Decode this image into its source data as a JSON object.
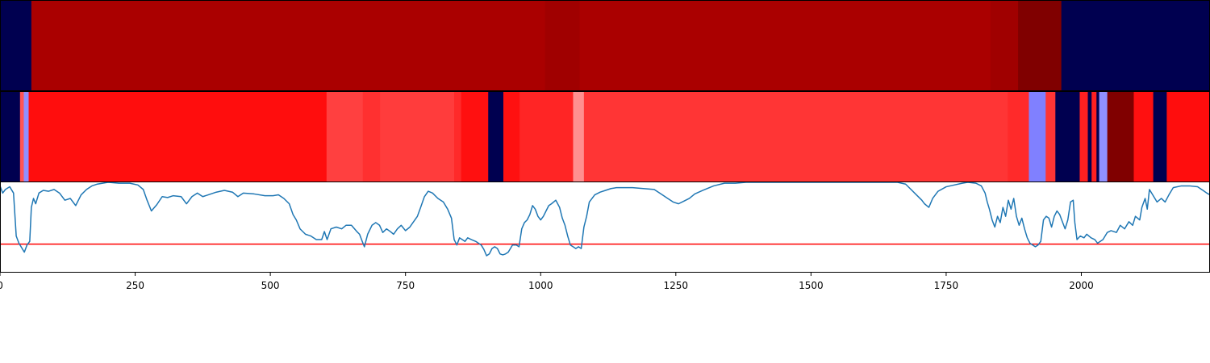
{
  "chart_data": {
    "type": "heatmap",
    "xlim": [
      0,
      2238
    ],
    "xticks": [
      0,
      250,
      500,
      750,
      1000,
      1250,
      1500,
      1750,
      2000
    ],
    "tick_labels": [
      "0",
      "250",
      "500",
      "750",
      "1000",
      "1250",
      "1500",
      "1750",
      "2000"
    ],
    "grid": false,
    "legend": "none",
    "bands": [
      {
        "segments": [
          {
            "start": 0,
            "end": 58,
            "color": "#000050"
          },
          {
            "start": 58,
            "end": 1008,
            "color": "#aa0000"
          },
          {
            "start": 1008,
            "end": 1072,
            "color": "#a00000"
          },
          {
            "start": 1072,
            "end": 1832,
            "color": "#aa0000"
          },
          {
            "start": 1832,
            "end": 1883,
            "color": "#a00000"
          },
          {
            "start": 1883,
            "end": 1963,
            "color": "#800000"
          },
          {
            "start": 1963,
            "end": 2238,
            "color": "#000050"
          }
        ]
      },
      {
        "segments": [
          {
            "start": 0,
            "end": 37,
            "color": "#000050"
          },
          {
            "start": 37,
            "end": 44,
            "color": "#ff5555"
          },
          {
            "start": 44,
            "end": 53,
            "color": "#9090ff"
          },
          {
            "start": 53,
            "end": 604,
            "color": "#ff0d0d"
          },
          {
            "start": 604,
            "end": 671,
            "color": "#ff4040"
          },
          {
            "start": 671,
            "end": 703,
            "color": "#ff3030"
          },
          {
            "start": 703,
            "end": 840,
            "color": "#ff3c3c"
          },
          {
            "start": 840,
            "end": 853,
            "color": "#ff2a2a"
          },
          {
            "start": 853,
            "end": 903,
            "color": "#ff1010"
          },
          {
            "start": 903,
            "end": 931,
            "color": "#000050"
          },
          {
            "start": 931,
            "end": 961,
            "color": "#ff1010"
          },
          {
            "start": 961,
            "end": 1060,
            "color": "#ff2525"
          },
          {
            "start": 1060,
            "end": 1080,
            "color": "#ff9090"
          },
          {
            "start": 1080,
            "end": 1864,
            "color": "#ff3535"
          },
          {
            "start": 1864,
            "end": 1903,
            "color": "#ff2a2a"
          },
          {
            "start": 1903,
            "end": 1934,
            "color": "#8080ff"
          },
          {
            "start": 1934,
            "end": 1952,
            "color": "#ff3535"
          },
          {
            "start": 1952,
            "end": 1997,
            "color": "#000050"
          },
          {
            "start": 1997,
            "end": 2012,
            "color": "#ff2020"
          },
          {
            "start": 2012,
            "end": 2019,
            "color": "#000050"
          },
          {
            "start": 2019,
            "end": 2028,
            "color": "#ff2020"
          },
          {
            "start": 2028,
            "end": 2033,
            "color": "#000050"
          },
          {
            "start": 2033,
            "end": 2048,
            "color": "#9090ff"
          },
          {
            "start": 2048,
            "end": 2097,
            "color": "#800000"
          },
          {
            "start": 2097,
            "end": 2133,
            "color": "#ff1010"
          },
          {
            "start": 2133,
            "end": 2158,
            "color": "#000050"
          },
          {
            "start": 2158,
            "end": 2238,
            "color": "#ff0d0d"
          }
        ]
      }
    ],
    "line_chart": {
      "type": "line",
      "ylim": [
        0,
        1
      ],
      "line_color": "#1f77b4",
      "threshold": 0.31,
      "threshold_color": "#ff0000",
      "points": [
        [
          0,
          0.96
        ],
        [
          5,
          0.88
        ],
        [
          10,
          0.92
        ],
        [
          18,
          0.95
        ],
        [
          25,
          0.88
        ],
        [
          30,
          0.4
        ],
        [
          35,
          0.32
        ],
        [
          40,
          0.27
        ],
        [
          45,
          0.22
        ],
        [
          50,
          0.3
        ],
        [
          55,
          0.34
        ],
        [
          58,
          0.72
        ],
        [
          62,
          0.82
        ],
        [
          66,
          0.76
        ],
        [
          72,
          0.88
        ],
        [
          80,
          0.91
        ],
        [
          90,
          0.9
        ],
        [
          100,
          0.92
        ],
        [
          110,
          0.88
        ],
        [
          120,
          0.8
        ],
        [
          130,
          0.82
        ],
        [
          140,
          0.74
        ],
        [
          150,
          0.86
        ],
        [
          160,
          0.92
        ],
        [
          170,
          0.96
        ],
        [
          180,
          0.98
        ],
        [
          190,
          0.99
        ],
        [
          200,
          1.0
        ],
        [
          220,
          0.99
        ],
        [
          240,
          0.99
        ],
        [
          255,
          0.97
        ],
        [
          265,
          0.92
        ],
        [
          272,
          0.8
        ],
        [
          280,
          0.68
        ],
        [
          290,
          0.75
        ],
        [
          300,
          0.84
        ],
        [
          310,
          0.83
        ],
        [
          320,
          0.85
        ],
        [
          335,
          0.84
        ],
        [
          345,
          0.76
        ],
        [
          355,
          0.84
        ],
        [
          365,
          0.88
        ],
        [
          375,
          0.84
        ],
        [
          385,
          0.86
        ],
        [
          400,
          0.89
        ],
        [
          415,
          0.91
        ],
        [
          430,
          0.89
        ],
        [
          440,
          0.84
        ],
        [
          450,
          0.88
        ],
        [
          470,
          0.87
        ],
        [
          490,
          0.85
        ],
        [
          505,
          0.85
        ],
        [
          515,
          0.86
        ],
        [
          525,
          0.82
        ],
        [
          535,
          0.76
        ],
        [
          542,
          0.64
        ],
        [
          548,
          0.58
        ],
        [
          555,
          0.48
        ],
        [
          565,
          0.42
        ],
        [
          575,
          0.4
        ],
        [
          585,
          0.36
        ],
        [
          595,
          0.36
        ],
        [
          600,
          0.45
        ],
        [
          605,
          0.36
        ],
        [
          612,
          0.48
        ],
        [
          622,
          0.5
        ],
        [
          632,
          0.48
        ],
        [
          640,
          0.52
        ],
        [
          650,
          0.52
        ],
        [
          660,
          0.45
        ],
        [
          665,
          0.42
        ],
        [
          670,
          0.34
        ],
        [
          674,
          0.28
        ],
        [
          680,
          0.42
        ],
        [
          688,
          0.52
        ],
        [
          695,
          0.55
        ],
        [
          702,
          0.52
        ],
        [
          708,
          0.44
        ],
        [
          715,
          0.48
        ],
        [
          722,
          0.45
        ],
        [
          728,
          0.42
        ],
        [
          735,
          0.48
        ],
        [
          742,
          0.52
        ],
        [
          750,
          0.46
        ],
        [
          758,
          0.5
        ],
        [
          765,
          0.56
        ],
        [
          772,
          0.62
        ],
        [
          778,
          0.72
        ],
        [
          785,
          0.84
        ],
        [
          792,
          0.9
        ],
        [
          800,
          0.88
        ],
        [
          810,
          0.82
        ],
        [
          820,
          0.78
        ],
        [
          828,
          0.7
        ],
        [
          835,
          0.6
        ],
        [
          840,
          0.36
        ],
        [
          845,
          0.3
        ],
        [
          850,
          0.38
        ],
        [
          855,
          0.36
        ],
        [
          860,
          0.34
        ],
        [
          865,
          0.38
        ],
        [
          872,
          0.36
        ],
        [
          880,
          0.34
        ],
        [
          890,
          0.3
        ],
        [
          895,
          0.25
        ],
        [
          900,
          0.18
        ],
        [
          905,
          0.2
        ],
        [
          910,
          0.26
        ],
        [
          915,
          0.28
        ],
        [
          920,
          0.26
        ],
        [
          925,
          0.2
        ],
        [
          930,
          0.19
        ],
        [
          935,
          0.2
        ],
        [
          940,
          0.22
        ],
        [
          948,
          0.3
        ],
        [
          955,
          0.3
        ],
        [
          960,
          0.28
        ],
        [
          965,
          0.48
        ],
        [
          970,
          0.55
        ],
        [
          975,
          0.58
        ],
        [
          980,
          0.64
        ],
        [
          985,
          0.74
        ],
        [
          990,
          0.7
        ],
        [
          995,
          0.62
        ],
        [
          1000,
          0.58
        ],
        [
          1005,
          0.62
        ],
        [
          1010,
          0.68
        ],
        [
          1015,
          0.74
        ],
        [
          1020,
          0.76
        ],
        [
          1028,
          0.8
        ],
        [
          1035,
          0.72
        ],
        [
          1040,
          0.6
        ],
        [
          1045,
          0.52
        ],
        [
          1050,
          0.4
        ],
        [
          1055,
          0.3
        ],
        [
          1060,
          0.28
        ],
        [
          1065,
          0.26
        ],
        [
          1070,
          0.28
        ],
        [
          1075,
          0.26
        ],
        [
          1080,
          0.5
        ],
        [
          1085,
          0.62
        ],
        [
          1090,
          0.78
        ],
        [
          1100,
          0.86
        ],
        [
          1110,
          0.89
        ],
        [
          1120,
          0.91
        ],
        [
          1130,
          0.93
        ],
        [
          1140,
          0.94
        ],
        [
          1155,
          0.94
        ],
        [
          1170,
          0.94
        ],
        [
          1190,
          0.93
        ],
        [
          1210,
          0.92
        ],
        [
          1225,
          0.86
        ],
        [
          1235,
          0.82
        ],
        [
          1245,
          0.78
        ],
        [
          1255,
          0.76
        ],
        [
          1265,
          0.79
        ],
        [
          1275,
          0.82
        ],
        [
          1285,
          0.87
        ],
        [
          1300,
          0.91
        ],
        [
          1320,
          0.96
        ],
        [
          1340,
          0.99
        ],
        [
          1360,
          0.99
        ],
        [
          1380,
          1.0
        ],
        [
          1400,
          1.0
        ],
        [
          1420,
          1.0
        ],
        [
          1440,
          1.0
        ],
        [
          1460,
          1.0
        ],
        [
          1480,
          1.0
        ],
        [
          1500,
          1.0
        ],
        [
          1520,
          1.0
        ],
        [
          1540,
          1.0
        ],
        [
          1560,
          1.0
        ],
        [
          1580,
          1.0
        ],
        [
          1600,
          1.0
        ],
        [
          1620,
          1.0
        ],
        [
          1640,
          1.0
        ],
        [
          1660,
          1.0
        ],
        [
          1675,
          0.98
        ],
        [
          1685,
          0.92
        ],
        [
          1695,
          0.86
        ],
        [
          1705,
          0.8
        ],
        [
          1710,
          0.76
        ],
        [
          1718,
          0.72
        ],
        [
          1725,
          0.82
        ],
        [
          1735,
          0.9
        ],
        [
          1750,
          0.95
        ],
        [
          1765,
          0.97
        ],
        [
          1780,
          0.99
        ],
        [
          1790,
          1.0
        ],
        [
          1805,
          0.99
        ],
        [
          1815,
          0.96
        ],
        [
          1822,
          0.88
        ],
        [
          1826,
          0.78
        ],
        [
          1830,
          0.7
        ],
        [
          1835,
          0.58
        ],
        [
          1840,
          0.5
        ],
        [
          1845,
          0.62
        ],
        [
          1850,
          0.55
        ],
        [
          1855,
          0.72
        ],
        [
          1860,
          0.62
        ],
        [
          1865,
          0.8
        ],
        [
          1870,
          0.7
        ],
        [
          1875,
          0.82
        ],
        [
          1880,
          0.62
        ],
        [
          1885,
          0.52
        ],
        [
          1890,
          0.6
        ],
        [
          1895,
          0.48
        ],
        [
          1900,
          0.38
        ],
        [
          1905,
          0.32
        ],
        [
          1910,
          0.3
        ],
        [
          1915,
          0.28
        ],
        [
          1920,
          0.3
        ],
        [
          1925,
          0.34
        ],
        [
          1930,
          0.58
        ],
        [
          1935,
          0.62
        ],
        [
          1940,
          0.6
        ],
        [
          1945,
          0.5
        ],
        [
          1950,
          0.62
        ],
        [
          1955,
          0.68
        ],
        [
          1960,
          0.64
        ],
        [
          1965,
          0.56
        ],
        [
          1970,
          0.48
        ],
        [
          1975,
          0.58
        ],
        [
          1980,
          0.78
        ],
        [
          1985,
          0.8
        ],
        [
          1988,
          0.55
        ],
        [
          1992,
          0.36
        ],
        [
          1998,
          0.4
        ],
        [
          2005,
          0.38
        ],
        [
          2010,
          0.42
        ],
        [
          2018,
          0.38
        ],
        [
          2025,
          0.36
        ],
        [
          2030,
          0.32
        ],
        [
          2035,
          0.34
        ],
        [
          2040,
          0.36
        ],
        [
          2048,
          0.44
        ],
        [
          2055,
          0.46
        ],
        [
          2065,
          0.44
        ],
        [
          2072,
          0.52
        ],
        [
          2080,
          0.48
        ],
        [
          2088,
          0.56
        ],
        [
          2095,
          0.52
        ],
        [
          2100,
          0.62
        ],
        [
          2108,
          0.58
        ],
        [
          2112,
          0.72
        ],
        [
          2118,
          0.82
        ],
        [
          2122,
          0.7
        ],
        [
          2126,
          0.92
        ],
        [
          2132,
          0.86
        ],
        [
          2140,
          0.78
        ],
        [
          2148,
          0.82
        ],
        [
          2155,
          0.78
        ],
        [
          2162,
          0.86
        ],
        [
          2170,
          0.94
        ],
        [
          2185,
          0.96
        ],
        [
          2200,
          0.96
        ],
        [
          2215,
          0.95
        ],
        [
          2225,
          0.91
        ],
        [
          2232,
          0.88
        ],
        [
          2238,
          0.86
        ]
      ]
    }
  }
}
